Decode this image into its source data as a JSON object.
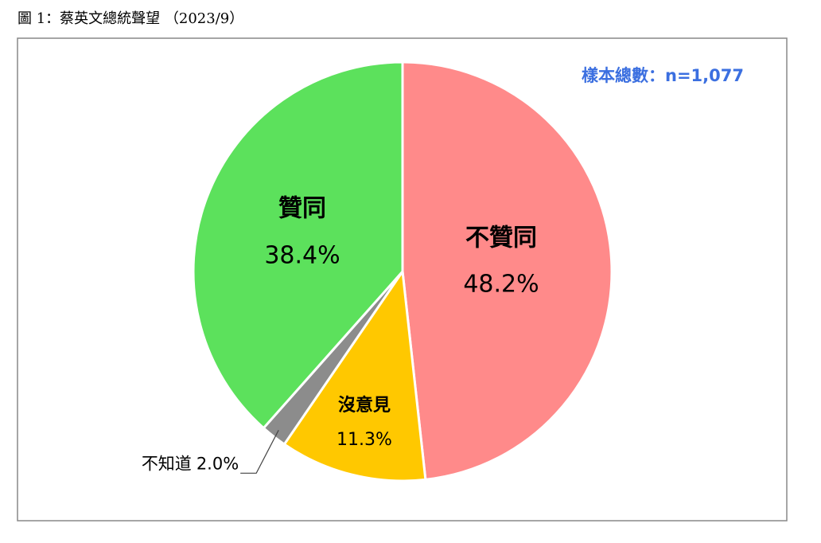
{
  "chart_data": {
    "type": "pie",
    "title": "圖 1：蔡英文總統聲望 （2023/9）",
    "annotation": "樣本總數：n=1,077",
    "categories": [
      "不贊同",
      "沒意見",
      "不知道",
      "贊同"
    ],
    "values": [
      48.2,
      11.3,
      2.0,
      38.4
    ],
    "value_labels": [
      "48.2%",
      "11.3%",
      "2.0%",
      "38.4%"
    ],
    "colors": [
      "#ff8a8a",
      "#ffc800",
      "#8c8c8c",
      "#5ce15c"
    ]
  }
}
